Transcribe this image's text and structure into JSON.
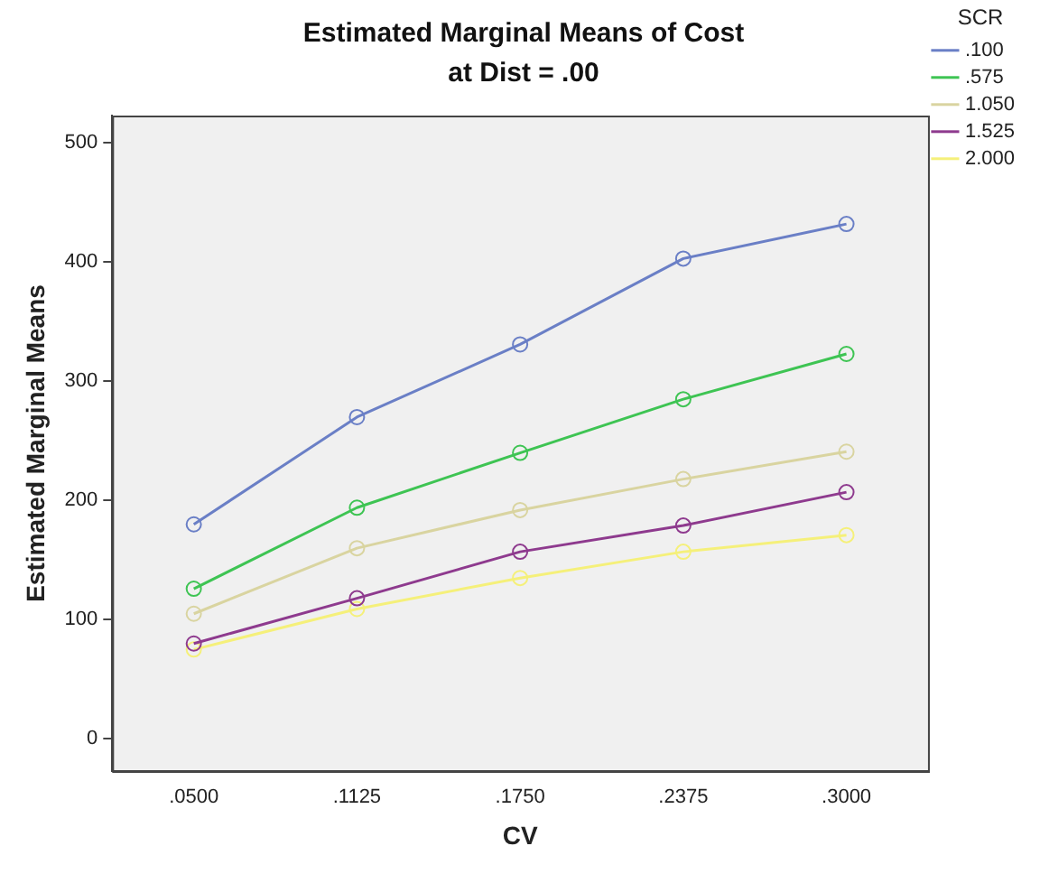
{
  "chart_data": {
    "type": "line",
    "title": "Estimated Marginal Means of Cost",
    "subtitle": "at Dist = .00",
    "xlabel": "CV",
    "ylabel": "Estimated Marginal Means",
    "legend_title": "SCR",
    "categories": [
      ".0500",
      ".1125",
      ".1750",
      ".2375",
      ".3000"
    ],
    "series": [
      {
        "name": ".100",
        "color": "#6a7fc6",
        "values": [
          180,
          270,
          331,
          403,
          432
        ]
      },
      {
        "name": ".575",
        "color": "#3ec453",
        "values": [
          126,
          194,
          240,
          285,
          323
        ]
      },
      {
        "name": "1.050",
        "color": "#d9d4a0",
        "values": [
          105,
          160,
          192,
          218,
          241
        ]
      },
      {
        "name": "1.525",
        "color": "#8e3a8e",
        "values": [
          80,
          118,
          157,
          179,
          207
        ]
      },
      {
        "name": "2.000",
        "color": "#f5f07a",
        "values": [
          75,
          109,
          135,
          157,
          171
        ]
      }
    ],
    "ylim": [
      -27,
      523
    ],
    "yticks": [
      0,
      100,
      200,
      300,
      400,
      500
    ],
    "grid": false,
    "legend": "right",
    "marker": "circle",
    "line_style": "solid"
  }
}
